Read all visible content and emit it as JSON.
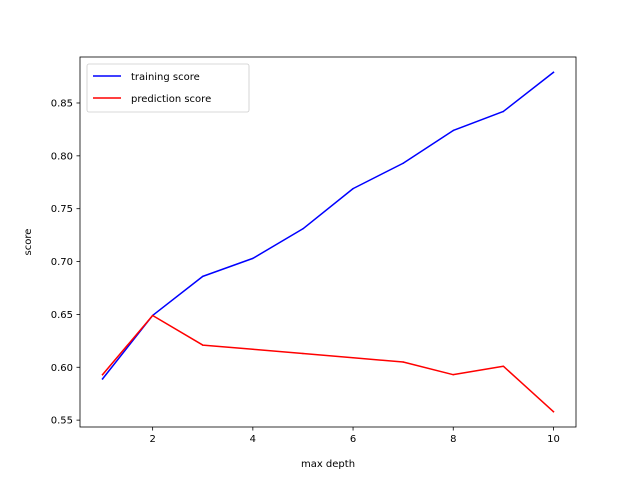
{
  "chart_data": {
    "type": "line",
    "title": "",
    "xlabel": "max depth",
    "ylabel": "score",
    "xlim": [
      0.55,
      10.45
    ],
    "ylim": [
      0.5435,
      0.8935
    ],
    "xticks": [
      2,
      4,
      6,
      8,
      10
    ],
    "yticks": [
      0.55,
      0.6,
      0.65,
      0.7,
      0.75,
      0.8,
      0.85
    ],
    "grid": false,
    "legend_position": "top-left",
    "x": [
      1,
      2,
      3,
      4,
      5,
      6,
      7,
      8,
      9,
      10
    ],
    "series": [
      {
        "name": "training score",
        "color": "#0000ff",
        "values": [
          0.589,
          0.649,
          0.686,
          0.703,
          0.731,
          0.769,
          0.793,
          0.824,
          0.842,
          0.879
        ]
      },
      {
        "name": "prediction score",
        "color": "#ff0000",
        "values": [
          0.593,
          0.649,
          0.621,
          0.617,
          0.613,
          0.609,
          0.605,
          0.593,
          0.601,
          0.558
        ]
      }
    ]
  }
}
